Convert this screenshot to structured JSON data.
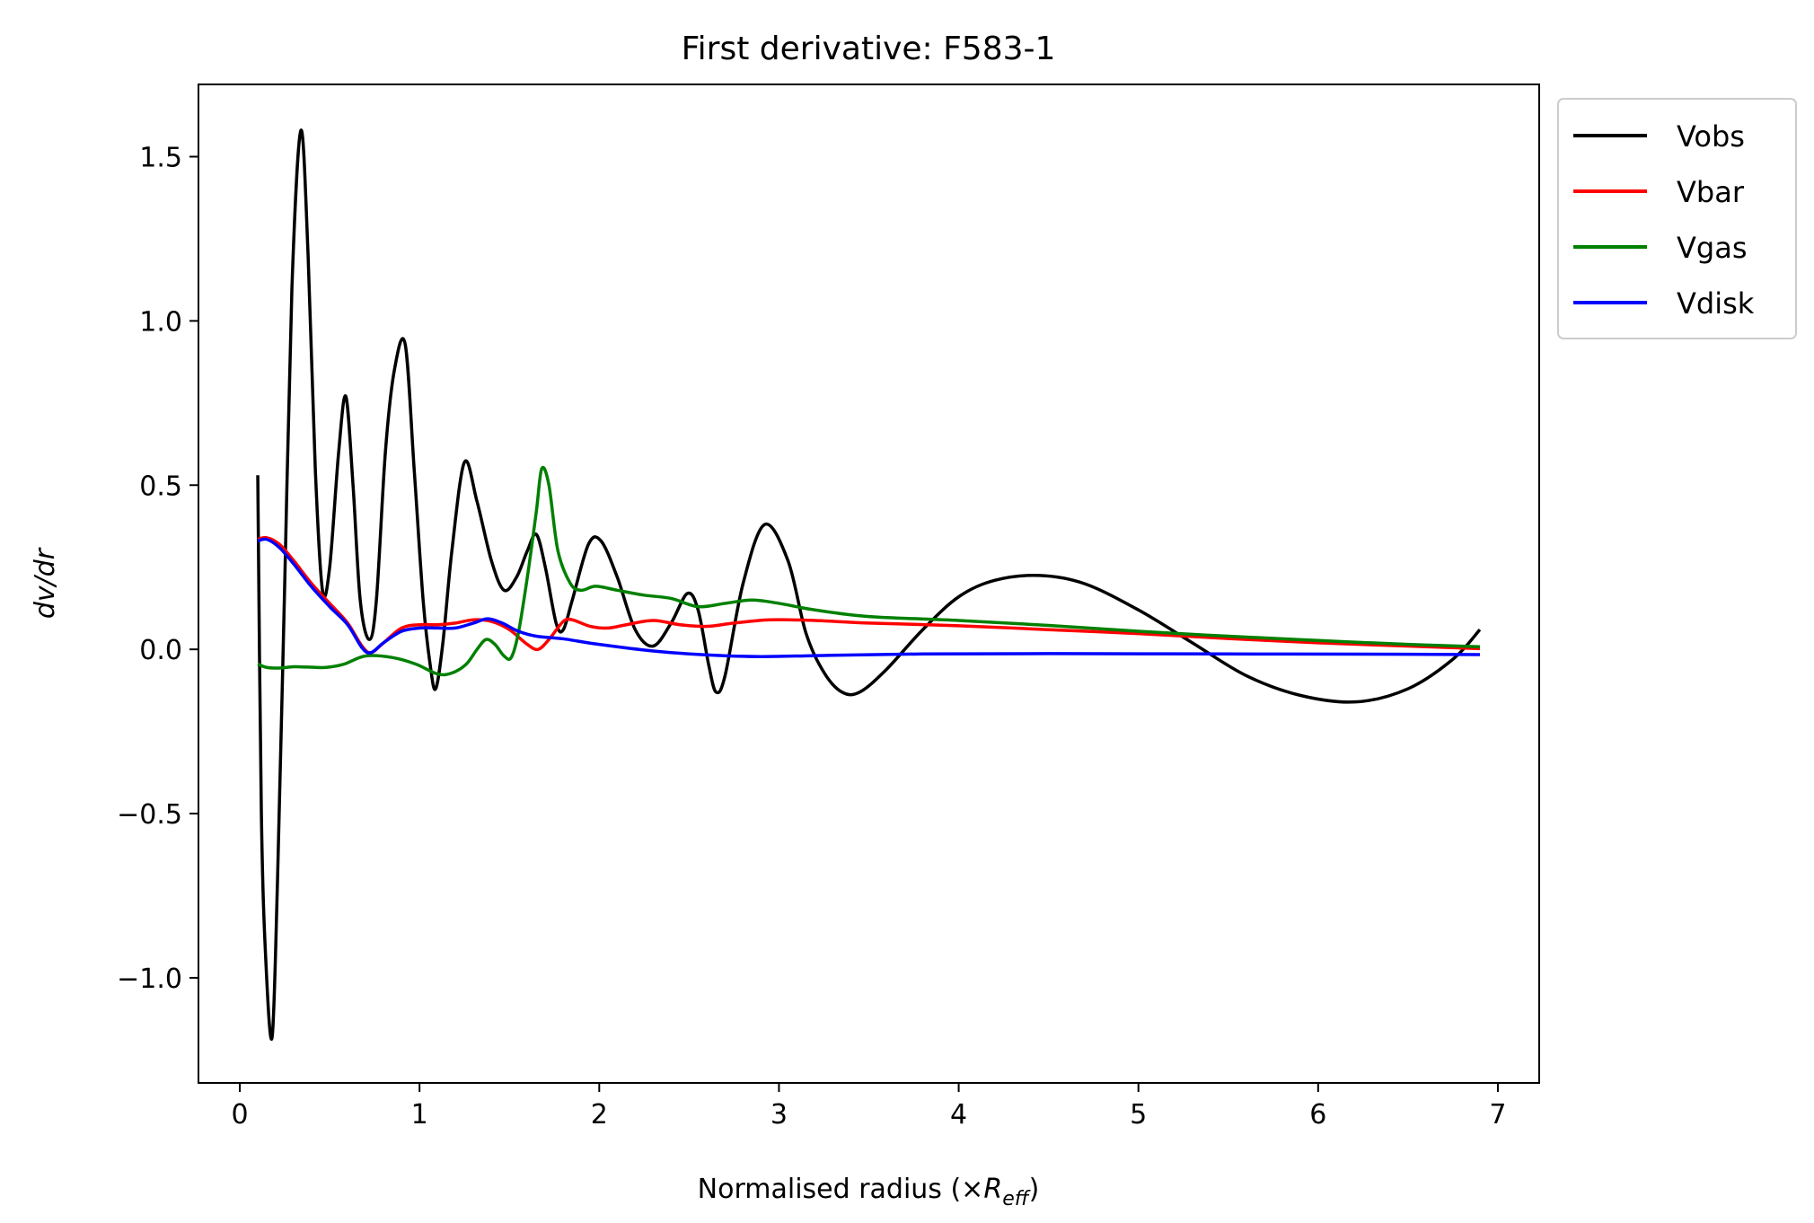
{
  "chart_data": {
    "type": "line",
    "title": "First derivative: F583-1",
    "xlabel_prefix": "Normalised radius (×",
    "xlabel_symbol": "R",
    "xlabel_subscript": "eff",
    "xlabel_suffix": ")",
    "ylabel": "dv/dr",
    "xlim": [
      -0.23,
      7.23
    ],
    "ylim": [
      -1.32,
      1.72
    ],
    "xticks": [
      0,
      1,
      2,
      3,
      4,
      5,
      6,
      7
    ],
    "xtick_labels": [
      "0",
      "1",
      "2",
      "3",
      "4",
      "5",
      "6",
      "7"
    ],
    "yticks": [
      -1.0,
      -0.5,
      0.0,
      0.5,
      1.0,
      1.5
    ],
    "ytick_labels": [
      "−1.0",
      "−0.5",
      "0.0",
      "0.5",
      "1.0",
      "1.5"
    ],
    "grid": false,
    "legend_position": "outside-top-right",
    "series": [
      {
        "name": "Vobs",
        "color": "#000000",
        "points": [
          [
            0.1,
            0.53
          ],
          [
            0.12,
            -0.5
          ],
          [
            0.145,
            -0.95
          ],
          [
            0.18,
            -1.18
          ],
          [
            0.21,
            -0.7
          ],
          [
            0.25,
            0.2
          ],
          [
            0.29,
            1.1
          ],
          [
            0.34,
            1.58
          ],
          [
            0.38,
            1.2
          ],
          [
            0.42,
            0.55
          ],
          [
            0.46,
            0.18
          ],
          [
            0.5,
            0.25
          ],
          [
            0.55,
            0.6
          ],
          [
            0.59,
            0.77
          ],
          [
            0.63,
            0.5
          ],
          [
            0.67,
            0.15
          ],
          [
            0.72,
            0.03
          ],
          [
            0.76,
            0.15
          ],
          [
            0.81,
            0.6
          ],
          [
            0.86,
            0.85
          ],
          [
            0.92,
            0.93
          ],
          [
            0.97,
            0.55
          ],
          [
            1.02,
            0.15
          ],
          [
            1.06,
            -0.05
          ],
          [
            1.09,
            -0.12
          ],
          [
            1.13,
            0.02
          ],
          [
            1.18,
            0.3
          ],
          [
            1.25,
            0.57
          ],
          [
            1.32,
            0.45
          ],
          [
            1.4,
            0.27
          ],
          [
            1.47,
            0.18
          ],
          [
            1.54,
            0.22
          ],
          [
            1.6,
            0.3
          ],
          [
            1.65,
            0.35
          ],
          [
            1.7,
            0.25
          ],
          [
            1.76,
            0.08
          ],
          [
            1.8,
            0.06
          ],
          [
            1.85,
            0.15
          ],
          [
            1.94,
            0.32
          ],
          [
            2.01,
            0.33
          ],
          [
            2.1,
            0.22
          ],
          [
            2.2,
            0.06
          ],
          [
            2.3,
            0.01
          ],
          [
            2.4,
            0.08
          ],
          [
            2.49,
            0.17
          ],
          [
            2.55,
            0.12
          ],
          [
            2.61,
            -0.05
          ],
          [
            2.65,
            -0.13
          ],
          [
            2.7,
            -0.08
          ],
          [
            2.8,
            0.2
          ],
          [
            2.92,
            0.38
          ],
          [
            3.05,
            0.27
          ],
          [
            3.15,
            0.05
          ],
          [
            3.25,
            -0.07
          ],
          [
            3.35,
            -0.13
          ],
          [
            3.45,
            -0.13
          ],
          [
            3.6,
            -0.06
          ],
          [
            3.8,
            0.06
          ],
          [
            4.0,
            0.16
          ],
          [
            4.2,
            0.21
          ],
          [
            4.45,
            0.225
          ],
          [
            4.7,
            0.2
          ],
          [
            5.0,
            0.12
          ],
          [
            5.3,
            0.02
          ],
          [
            5.6,
            -0.08
          ],
          [
            5.9,
            -0.14
          ],
          [
            6.21,
            -0.16
          ],
          [
            6.5,
            -0.12
          ],
          [
            6.75,
            -0.03
          ],
          [
            6.9,
            0.06
          ]
        ]
      },
      {
        "name": "Vbar",
        "color": "#ff0000",
        "points": [
          [
            0.1,
            0.335
          ],
          [
            0.15,
            0.34
          ],
          [
            0.22,
            0.32
          ],
          [
            0.3,
            0.27
          ],
          [
            0.4,
            0.2
          ],
          [
            0.5,
            0.14
          ],
          [
            0.6,
            0.08
          ],
          [
            0.68,
            0.01
          ],
          [
            0.73,
            -0.01
          ],
          [
            0.8,
            0.02
          ],
          [
            0.9,
            0.065
          ],
          [
            1.0,
            0.075
          ],
          [
            1.1,
            0.075
          ],
          [
            1.2,
            0.08
          ],
          [
            1.3,
            0.09
          ],
          [
            1.4,
            0.085
          ],
          [
            1.5,
            0.06
          ],
          [
            1.6,
            0.015
          ],
          [
            1.66,
            0.0
          ],
          [
            1.72,
            0.03
          ],
          [
            1.8,
            0.085
          ],
          [
            1.85,
            0.09
          ],
          [
            1.95,
            0.07
          ],
          [
            2.05,
            0.065
          ],
          [
            2.15,
            0.075
          ],
          [
            2.3,
            0.088
          ],
          [
            2.45,
            0.075
          ],
          [
            2.6,
            0.07
          ],
          [
            2.75,
            0.08
          ],
          [
            2.95,
            0.09
          ],
          [
            3.2,
            0.088
          ],
          [
            3.5,
            0.08
          ],
          [
            4.0,
            0.072
          ],
          [
            4.5,
            0.06
          ],
          [
            5.0,
            0.048
          ],
          [
            5.5,
            0.033
          ],
          [
            6.0,
            0.02
          ],
          [
            6.5,
            0.01
          ],
          [
            6.9,
            0.002
          ]
        ]
      },
      {
        "name": "Vgas",
        "color": "#008000",
        "points": [
          [
            0.1,
            -0.045
          ],
          [
            0.15,
            -0.055
          ],
          [
            0.22,
            -0.057
          ],
          [
            0.3,
            -0.053
          ],
          [
            0.38,
            -0.054
          ],
          [
            0.48,
            -0.055
          ],
          [
            0.58,
            -0.045
          ],
          [
            0.7,
            -0.02
          ],
          [
            0.85,
            -0.025
          ],
          [
            0.98,
            -0.045
          ],
          [
            1.1,
            -0.075
          ],
          [
            1.18,
            -0.072
          ],
          [
            1.26,
            -0.045
          ],
          [
            1.32,
            0.0
          ],
          [
            1.37,
            0.03
          ],
          [
            1.42,
            0.015
          ],
          [
            1.47,
            -0.02
          ],
          [
            1.51,
            -0.025
          ],
          [
            1.55,
            0.05
          ],
          [
            1.6,
            0.22
          ],
          [
            1.65,
            0.42
          ],
          [
            1.68,
            0.55
          ],
          [
            1.72,
            0.5
          ],
          [
            1.77,
            0.3
          ],
          [
            1.84,
            0.2
          ],
          [
            1.9,
            0.18
          ],
          [
            1.98,
            0.192
          ],
          [
            2.1,
            0.18
          ],
          [
            2.25,
            0.165
          ],
          [
            2.4,
            0.155
          ],
          [
            2.55,
            0.13
          ],
          [
            2.7,
            0.14
          ],
          [
            2.85,
            0.15
          ],
          [
            3.0,
            0.14
          ],
          [
            3.2,
            0.12
          ],
          [
            3.5,
            0.1
          ],
          [
            4.0,
            0.088
          ],
          [
            4.5,
            0.073
          ],
          [
            5.0,
            0.055
          ],
          [
            5.5,
            0.04
          ],
          [
            6.0,
            0.027
          ],
          [
            6.5,
            0.015
          ],
          [
            6.9,
            0.008
          ]
        ]
      },
      {
        "name": "Vdisk",
        "color": "#0000ff",
        "points": [
          [
            0.1,
            0.33
          ],
          [
            0.15,
            0.335
          ],
          [
            0.22,
            0.31
          ],
          [
            0.3,
            0.26
          ],
          [
            0.4,
            0.19
          ],
          [
            0.5,
            0.13
          ],
          [
            0.6,
            0.075
          ],
          [
            0.68,
            0.005
          ],
          [
            0.73,
            -0.01
          ],
          [
            0.8,
            0.02
          ],
          [
            0.9,
            0.055
          ],
          [
            1.0,
            0.065
          ],
          [
            1.1,
            0.065
          ],
          [
            1.2,
            0.065
          ],
          [
            1.3,
            0.08
          ],
          [
            1.38,
            0.093
          ],
          [
            1.46,
            0.08
          ],
          [
            1.55,
            0.055
          ],
          [
            1.65,
            0.04
          ],
          [
            1.8,
            0.032
          ],
          [
            2.0,
            0.015
          ],
          [
            2.3,
            -0.005
          ],
          [
            2.6,
            -0.017
          ],
          [
            2.9,
            -0.022
          ],
          [
            3.3,
            -0.018
          ],
          [
            3.8,
            -0.014
          ],
          [
            4.5,
            -0.013
          ],
          [
            5.5,
            -0.014
          ],
          [
            6.5,
            -0.015
          ],
          [
            6.9,
            -0.016
          ]
        ]
      }
    ]
  }
}
